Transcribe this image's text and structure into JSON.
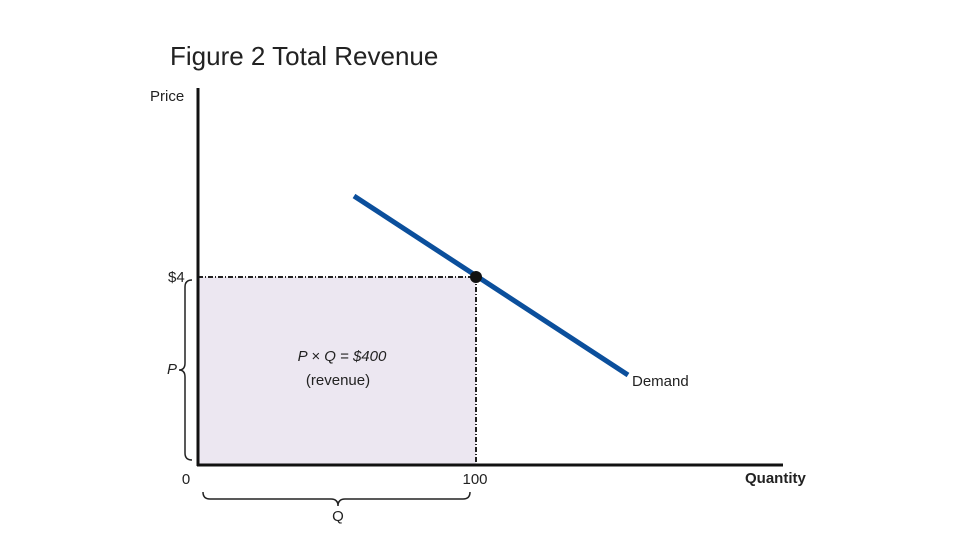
{
  "title": "Figure 2 Total Revenue",
  "axes": {
    "y_label": "Price",
    "x_label": "Quantity"
  },
  "labels": {
    "price_value": "$4",
    "price_brace": "P",
    "origin": "0",
    "quantity_value": "100",
    "quantity_brace": "Q",
    "revenue_line1": "P × Q = $400",
    "revenue_line2": "(revenue)",
    "demand": "Demand"
  }
}
